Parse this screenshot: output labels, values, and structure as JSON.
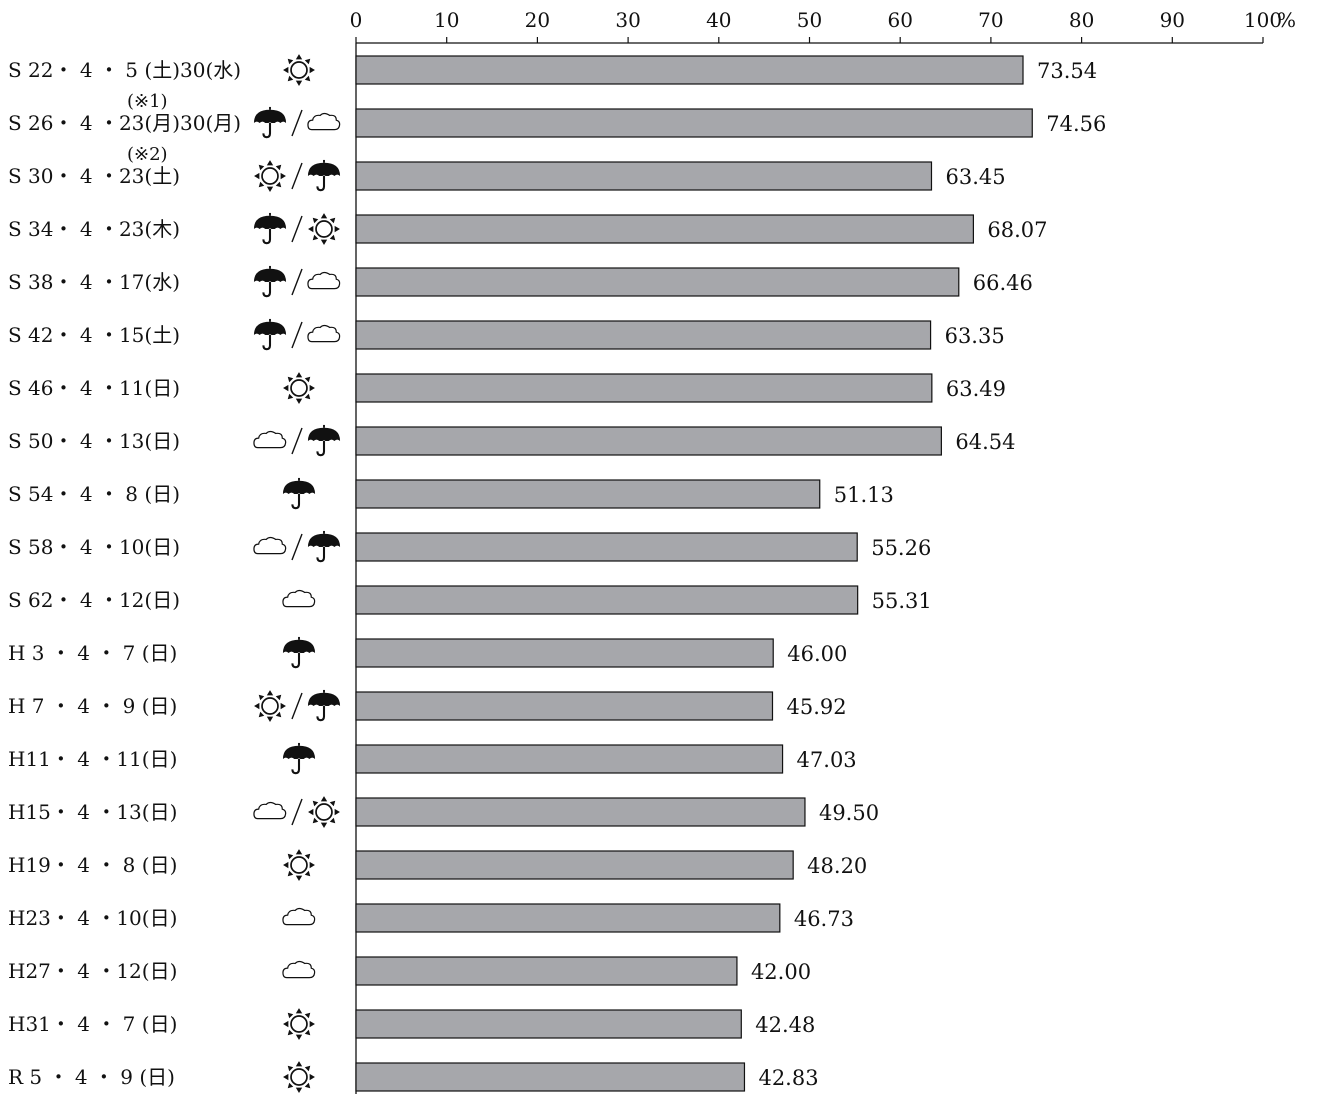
{
  "chart_data": {
    "type": "bar",
    "orientation": "horizontal",
    "xlim": [
      0,
      100
    ],
    "ticks": [
      "0",
      "10",
      "20",
      "30",
      "40",
      "50",
      "60",
      "70",
      "80",
      "90",
      "100"
    ],
    "unit": "%",
    "bar_color": "#a6a7ab",
    "categories": [
      {
        "label": "S 22・ 4 ・ 5 (土)30(水)",
        "weather": [
          "sun-icon"
        ],
        "value": 73.54,
        "value_label": "73.54",
        "note": ""
      },
      {
        "label": "S 26・ 4 ・23(月)30(月)",
        "weather": [
          "umbrella-icon",
          "cloud-icon"
        ],
        "value": 74.56,
        "value_label": "74.56",
        "note": "(※1)"
      },
      {
        "label": "S 30・ 4 ・23(土)",
        "weather": [
          "sun-icon",
          "umbrella-icon"
        ],
        "value": 63.45,
        "value_label": "63.45",
        "note": "(※2)"
      },
      {
        "label": "S 34・ 4 ・23(木)",
        "weather": [
          "umbrella-icon",
          "sun-icon"
        ],
        "value": 68.07,
        "value_label": "68.07",
        "note": ""
      },
      {
        "label": "S 38・ 4 ・17(水)",
        "weather": [
          "umbrella-icon",
          "cloud-icon"
        ],
        "value": 66.46,
        "value_label": "66.46",
        "note": ""
      },
      {
        "label": "S 42・ 4 ・15(土)",
        "weather": [
          "umbrella-icon",
          "cloud-icon"
        ],
        "value": 63.35,
        "value_label": "63.35",
        "note": ""
      },
      {
        "label": "S 46・ 4 ・11(日)",
        "weather": [
          "sun-icon"
        ],
        "value": 63.49,
        "value_label": "63.49",
        "note": ""
      },
      {
        "label": "S 50・ 4 ・13(日)",
        "weather": [
          "cloud-icon",
          "umbrella-icon"
        ],
        "value": 64.54,
        "value_label": "64.54",
        "note": ""
      },
      {
        "label": "S 54・ 4 ・ 8 (日)",
        "weather": [
          "umbrella-icon"
        ],
        "value": 51.13,
        "value_label": "51.13",
        "note": ""
      },
      {
        "label": "S 58・ 4 ・10(日)",
        "weather": [
          "cloud-icon",
          "umbrella-icon"
        ],
        "value": 55.26,
        "value_label": "55.26",
        "note": ""
      },
      {
        "label": "S 62・ 4 ・12(日)",
        "weather": [
          "cloud-icon"
        ],
        "value": 55.31,
        "value_label": "55.31",
        "note": ""
      },
      {
        "label": "H 3 ・ 4 ・ 7 (日)",
        "weather": [
          "umbrella-icon"
        ],
        "value": 46.0,
        "value_label": "46.00",
        "note": ""
      },
      {
        "label": "H 7 ・ 4 ・ 9 (日)",
        "weather": [
          "sun-icon",
          "umbrella-icon"
        ],
        "value": 45.92,
        "value_label": "45.92",
        "note": ""
      },
      {
        "label": "H11・ 4 ・11(日)",
        "weather": [
          "umbrella-icon"
        ],
        "value": 47.03,
        "value_label": "47.03",
        "note": ""
      },
      {
        "label": "H15・ 4 ・13(日)",
        "weather": [
          "cloud-icon",
          "sun-icon"
        ],
        "value": 49.5,
        "value_label": "49.50",
        "note": ""
      },
      {
        "label": "H19・ 4 ・ 8 (日)",
        "weather": [
          "sun-icon"
        ],
        "value": 48.2,
        "value_label": "48.20",
        "note": ""
      },
      {
        "label": "H23・ 4 ・10(日)",
        "weather": [
          "cloud-icon"
        ],
        "value": 46.73,
        "value_label": "46.73",
        "note": ""
      },
      {
        "label": "H27・ 4 ・12(日)",
        "weather": [
          "cloud-icon"
        ],
        "value": 42.0,
        "value_label": "42.00",
        "note": ""
      },
      {
        "label": "H31・ 4 ・ 7 (日)",
        "weather": [
          "sun-icon"
        ],
        "value": 42.48,
        "value_label": "42.48",
        "note": ""
      },
      {
        "label": "R 5 ・ 4 ・ 9 (日)",
        "weather": [
          "sun-icon"
        ],
        "value": 42.83,
        "value_label": "42.83",
        "note": ""
      }
    ]
  }
}
